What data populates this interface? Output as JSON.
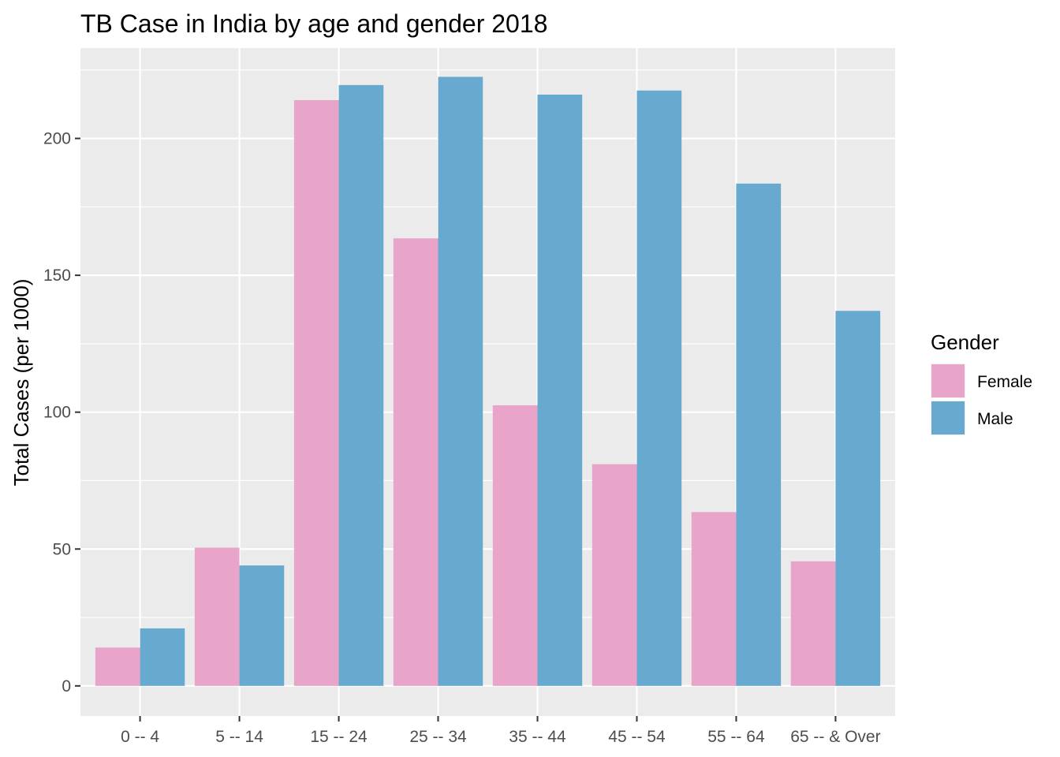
{
  "chart_data": {
    "type": "bar",
    "title": "TB Case in India by age and gender 2018",
    "xlabel": "",
    "ylabel": "Total Cases (per 1000)",
    "categories": [
      "0 -- 4",
      "5 -- 14",
      "15 -- 24",
      "25 -- 34",
      "35 -- 44",
      "45 -- 54",
      "55 -- 64",
      "65 -- & Over"
    ],
    "series": [
      {
        "name": "Female",
        "color": "#e8a5c9",
        "values": [
          14,
          50.5,
          214,
          163.5,
          102.5,
          81,
          63.5,
          45.5
        ]
      },
      {
        "name": "Male",
        "color": "#67a9cf",
        "values": [
          21,
          44,
          219.5,
          222.5,
          216,
          217.5,
          183.5,
          137
        ]
      }
    ],
    "ylim": [
      -11,
      233
    ],
    "yticks": [
      0,
      50,
      100,
      150,
      200
    ],
    "ytick_labels": [
      "0",
      "50",
      "100",
      "150",
      "200"
    ],
    "grid": true,
    "panel_background": "#ebebeb",
    "grid_color": "#ffffff",
    "legend": {
      "title": "Gender",
      "placement": "right"
    }
  }
}
